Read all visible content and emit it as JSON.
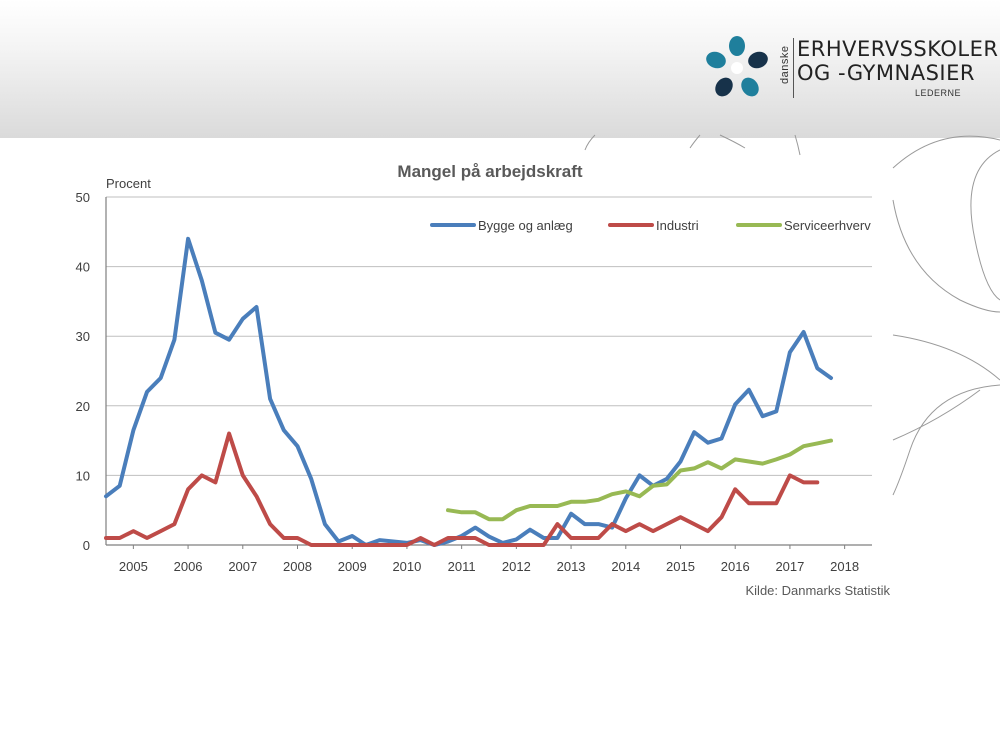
{
  "logo": {
    "side_text": "danske",
    "line1": "ERHVERVSSKOLER",
    "line2": "OG -GYMNASIER",
    "line3": "LEDERNE"
  },
  "chart_data": {
    "type": "line",
    "title": "Mangel på arbejdskraft",
    "ylabel": "Procent",
    "xlabel": "",
    "source": "Kilde: Danmarks Statistik",
    "ylim": [
      0,
      50
    ],
    "yticks": [
      0,
      10,
      20,
      30,
      40,
      50
    ],
    "xlim": [
      2004.75,
      2018.75
    ],
    "xticks": [
      "2005",
      "2006",
      "2007",
      "2008",
      "2009",
      "2010",
      "2011",
      "2012",
      "2013",
      "2014",
      "2015",
      "2016",
      "2017",
      "2018"
    ],
    "grid": true,
    "legend_position": "top-right",
    "series": [
      {
        "name": "Bygge og anlæg",
        "color": "#4a7ebb",
        "x": [
          2004.75,
          2005.0,
          2005.25,
          2005.5,
          2005.75,
          2006.0,
          2006.25,
          2006.5,
          2006.75,
          2007.0,
          2007.25,
          2007.5,
          2007.75,
          2008.0,
          2008.25,
          2008.5,
          2008.75,
          2009.0,
          2009.25,
          2009.5,
          2009.75,
          2010.0,
          2010.25,
          2010.5,
          2010.75,
          2011.0,
          2011.25,
          2011.5,
          2011.75,
          2012.0,
          2012.25,
          2012.5,
          2012.75,
          2013.0,
          2013.25,
          2013.5,
          2013.75,
          2014.0,
          2014.25,
          2014.5,
          2014.75,
          2015.0,
          2015.25,
          2015.5,
          2015.75,
          2016.0,
          2016.25,
          2016.5,
          2016.75,
          2017.0,
          2017.25,
          2017.5,
          2017.75,
          2018.0
        ],
        "y": [
          7,
          8.5,
          16.5,
          22,
          24,
          29.5,
          44,
          38,
          30.5,
          29.5,
          32.5,
          34.2,
          21,
          16.5,
          14.2,
          9.5,
          3,
          0.5,
          1.3,
          0,
          0.7,
          0.5,
          0.3,
          0.7,
          0,
          0.5,
          1.3,
          2.5,
          1.2,
          0.3,
          0.8,
          2.2,
          1,
          1,
          4.5,
          3,
          3,
          2.5,
          6.7,
          10,
          8.5,
          9.5,
          12,
          16.2,
          14.7,
          15.3,
          20.2,
          22.3,
          18.5,
          19.2,
          27.7,
          30.6,
          25.4,
          24
        ]
      },
      {
        "name": "Industri",
        "color": "#be4b48",
        "x": [
          2004.75,
          2005.0,
          2005.25,
          2005.5,
          2005.75,
          2006.0,
          2006.25,
          2006.5,
          2006.75,
          2007.0,
          2007.25,
          2007.5,
          2007.75,
          2008.0,
          2008.25,
          2008.5,
          2008.75,
          2009.0,
          2009.25,
          2009.5,
          2009.75,
          2010.0,
          2010.25,
          2010.5,
          2010.75,
          2011.0,
          2011.25,
          2011.5,
          2011.75,
          2012.0,
          2012.25,
          2012.5,
          2012.75,
          2013.0,
          2013.25,
          2013.5,
          2013.75,
          2014.0,
          2014.25,
          2014.5,
          2014.75,
          2015.0,
          2015.25,
          2015.5,
          2015.75,
          2016.0,
          2016.25,
          2016.5,
          2016.75,
          2017.0,
          2017.25,
          2017.5,
          2017.75
        ],
        "y": [
          1,
          1,
          2,
          1,
          2,
          3,
          8,
          10,
          9,
          16,
          10,
          7,
          3,
          1,
          1,
          0,
          0,
          0,
          0,
          0,
          0,
          0,
          0,
          1,
          0,
          1,
          1,
          1,
          0,
          0,
          0,
          0,
          0,
          3,
          1,
          1,
          1,
          3,
          2,
          3,
          2,
          3,
          4,
          3,
          2,
          4,
          8,
          6,
          6,
          6,
          10,
          9,
          9
        ]
      },
      {
        "name": "Serviceerhverv",
        "color": "#98b954",
        "x": [
          2011.0,
          2011.25,
          2011.5,
          2011.75,
          2012.0,
          2012.25,
          2012.5,
          2012.75,
          2013.0,
          2013.25,
          2013.5,
          2013.75,
          2014.0,
          2014.25,
          2014.5,
          2014.75,
          2015.0,
          2015.25,
          2015.5,
          2015.75,
          2016.0,
          2016.25,
          2016.5,
          2016.75,
          2017.0,
          2017.25,
          2017.5,
          2017.75,
          2018.0
        ],
        "y": [
          5,
          4.7,
          4.7,
          3.7,
          3.7,
          5,
          5.6,
          5.6,
          5.6,
          6.2,
          6.2,
          6.5,
          7.3,
          7.7,
          7,
          8.5,
          8.7,
          10.7,
          11,
          11.9,
          11,
          12.3,
          12,
          11.7,
          12.3,
          13,
          14.2,
          14.6,
          15
        ]
      }
    ]
  }
}
